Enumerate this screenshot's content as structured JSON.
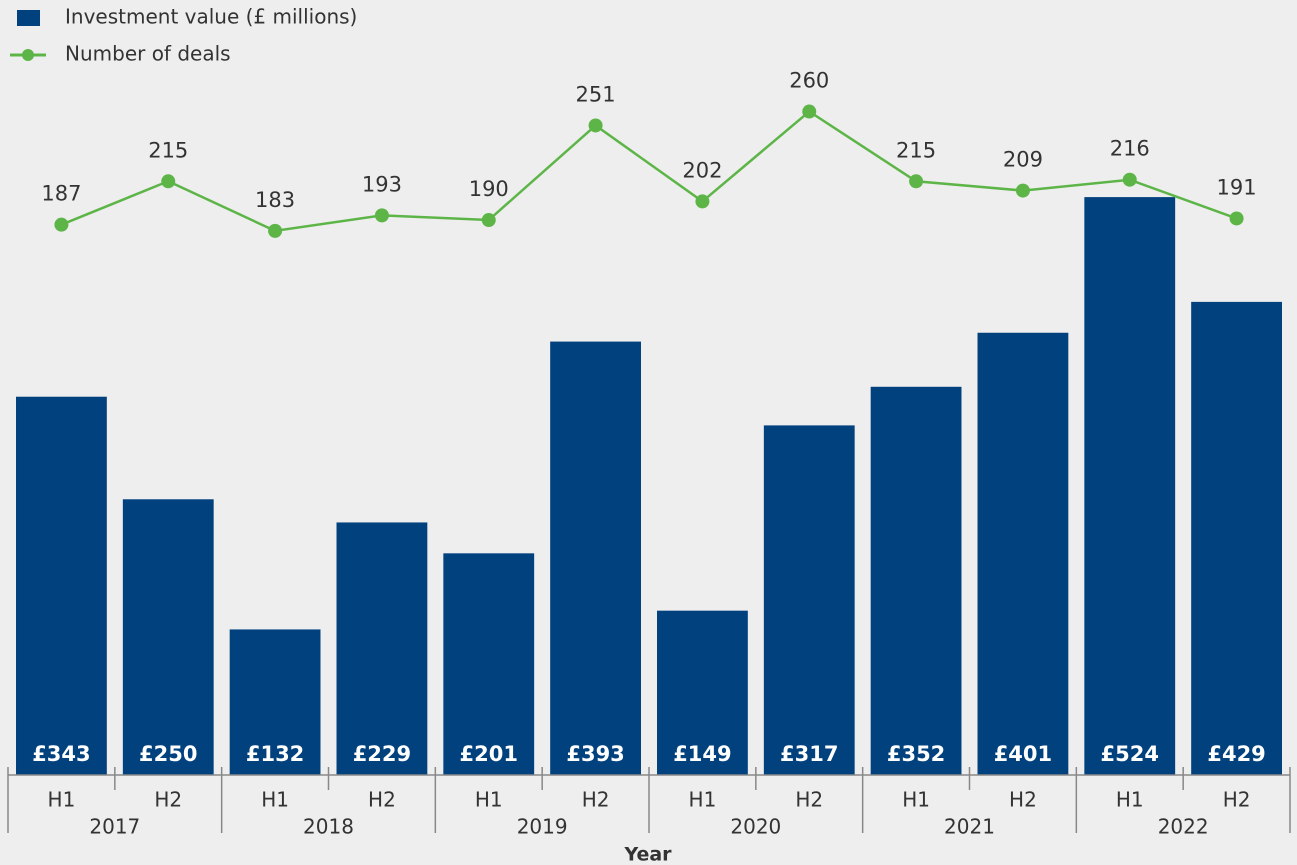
{
  "chart_data": {
    "type": "bar",
    "categories": [
      "H1",
      "H2",
      "H1",
      "H2",
      "H1",
      "H2",
      "H1",
      "H2",
      "H1",
      "H2",
      "H1",
      "H2"
    ],
    "groups": [
      "2017",
      "2018",
      "2019",
      "2020",
      "2021",
      "2022"
    ],
    "x_label": "Year",
    "series": [
      {
        "name": "Investment value (£ millions)",
        "type": "bar",
        "color": "#00417e",
        "values": [
          343,
          250,
          132,
          229,
          201,
          393,
          149,
          317,
          352,
          401,
          524,
          429
        ],
        "value_labels": [
          "£343",
          "£250",
          "£132",
          "£229",
          "£201",
          "£393",
          "£149",
          "£317",
          "£352",
          "£401",
          "£524",
          "£429"
        ]
      },
      {
        "name": "Number of deals",
        "type": "line",
        "axis": "y2",
        "color": "#5db548",
        "values": [
          187,
          215,
          183,
          193,
          190,
          251,
          202,
          260,
          215,
          209,
          216,
          191
        ]
      }
    ],
    "ylim": [
      0,
      700
    ],
    "y2lim": [
      -168,
      330
    ],
    "legend": "top-left"
  }
}
